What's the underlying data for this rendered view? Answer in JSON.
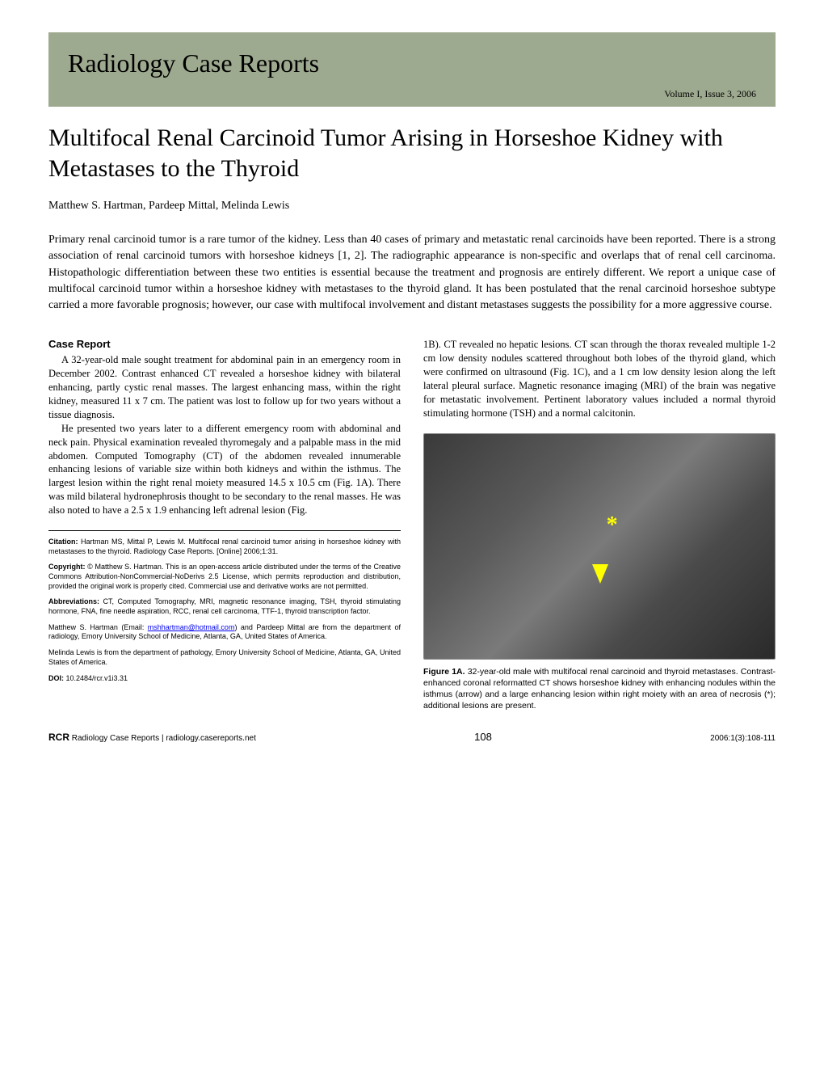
{
  "header": {
    "journal": "Radiology Case Reports",
    "issue": "Volume I, Issue 3, 2006",
    "banner_color": "#9eaa8f"
  },
  "article": {
    "title": "Multifocal Renal Carcinoid Tumor Arising in Horseshoe Kidney with Metastases to the Thyroid",
    "authors": "Matthew S. Hartman, Pardeep Mittal, Melinda Lewis",
    "abstract": "Primary renal carcinoid tumor is a rare tumor of the kidney.  Less than 40 cases of primary and metastatic renal carcinoids have been reported.  There is a strong association of renal carcinoid tumors with horseshoe kidneys [1, 2].  The radiographic appearance is non-specific and overlaps that of renal cell carcinoma.  Histopathologic differentiation between these two entities is essential because the treatment and prognosis are entirely different.  We report a unique case of multifocal carcinoid tumor within a horseshoe kidney with metastases to the thyroid gland.  It has been postulated that the renal carcinoid horseshoe subtype carried a more favorable prognosis; however, our case with multifocal involvement and distant metastases suggests the possibility for a more aggressive course."
  },
  "case_report": {
    "heading": "Case Report",
    "para1": "A 32-year-old male sought treatment for abdominal pain in an emergency room in December 2002.  Contrast enhanced CT revealed a horseshoe kidney with bilateral enhancing, partly cystic renal masses.  The largest enhancing mass, within the right kidney, measured 11 x 7 cm.  The patient was lost to follow up for two years without a tissue diagnosis.",
    "para2": "He presented two years later to a different emergency room with abdominal and neck pain.  Physical examination revealed thyromegaly and a palpable mass in the mid abdomen.  Computed Tomography (CT) of the abdomen revealed innumerable enhancing lesions of variable size within both kidneys and within the isthmus.  The largest lesion within the right renal moiety measured 14.5 x 10.5 cm (Fig. 1A).  There was mild bilateral hydronephrosis thought to be secondary to the renal masses.    He was also noted to have a 2.5 x 1.9 enhancing left adrenal lesion (Fig.",
    "para3_right": "1B).  CT revealed no hepatic lesions.  CT scan through the thorax revealed multiple 1-2 cm low density nodules scattered throughout both lobes of the thyroid gland, which were confirmed on ultrasound (Fig. 1C), and a 1 cm low density lesion along the left lateral pleural surface.  Magnetic resonance imaging (MRI) of the brain was negative for metastatic involvement.  Pertinent laboratory values included a normal thyroid stimulating hormone (TSH) and a normal calcitonin."
  },
  "meta": {
    "citation_label": "Citation:",
    "citation_text": " Hartman MS, Mittal P, Lewis M. Multifocal renal carcinoid tumor arising in horseshoe kidney with metastases to the thyroid. Radiology Case Reports. [Online] 2006;1:31.",
    "copyright_label": "Copyright:",
    "copyright_text": " © Matthew S. Hartman. This is an open-access article distributed under the terms of the Creative Commons Attribution-NonCommercial-NoDerivs 2.5 License, which permits reproduction and distribution, provided the original work is properly cited. Commercial use and derivative works are not permitted.",
    "abbrev_label": "Abbreviations:",
    "abbrev_text": " CT, Computed Tomography, MRI, magnetic resonance imaging, TSH, thyroid stimulating hormone, FNA, fine needle aspiration, RCC, renal cell carcinoma, TTF-1, thyroid transcription factor.",
    "affil1_pre": "Matthew S. Hartman (Email: ",
    "affil1_email": "mshhartman@hotmail.com",
    "affil1_post": ") and Pardeep Mittal are from the department of radiology, Emory University School of Medicine, Atlanta, GA, United States of America.",
    "affil2": "Melinda Lewis is from the department of pathology, Emory University School of Medicine, Atlanta, GA, United States of America.",
    "doi_label": "DOI:",
    "doi_text": " 10.2484/rcr.v1i3.31"
  },
  "figure": {
    "label": "Figure 1A.",
    "caption": "    32-year-old male with multifocal renal carcinoid and thyroid metastases.  Contrast-enhanced coronal reformatted CT shows horseshoe kidney with enhancing nodules within the isthmus (arrow) and a large enhancing lesion within right moiety with an area of necrosis (*); additional lesions are present.",
    "marker_color": "#ffff00"
  },
  "footer": {
    "rcr": "RCR",
    "journal_line": " Radiology Case Reports | radiology.casereports.net",
    "page": "108",
    "citation": "2006:1(3):108-111"
  }
}
